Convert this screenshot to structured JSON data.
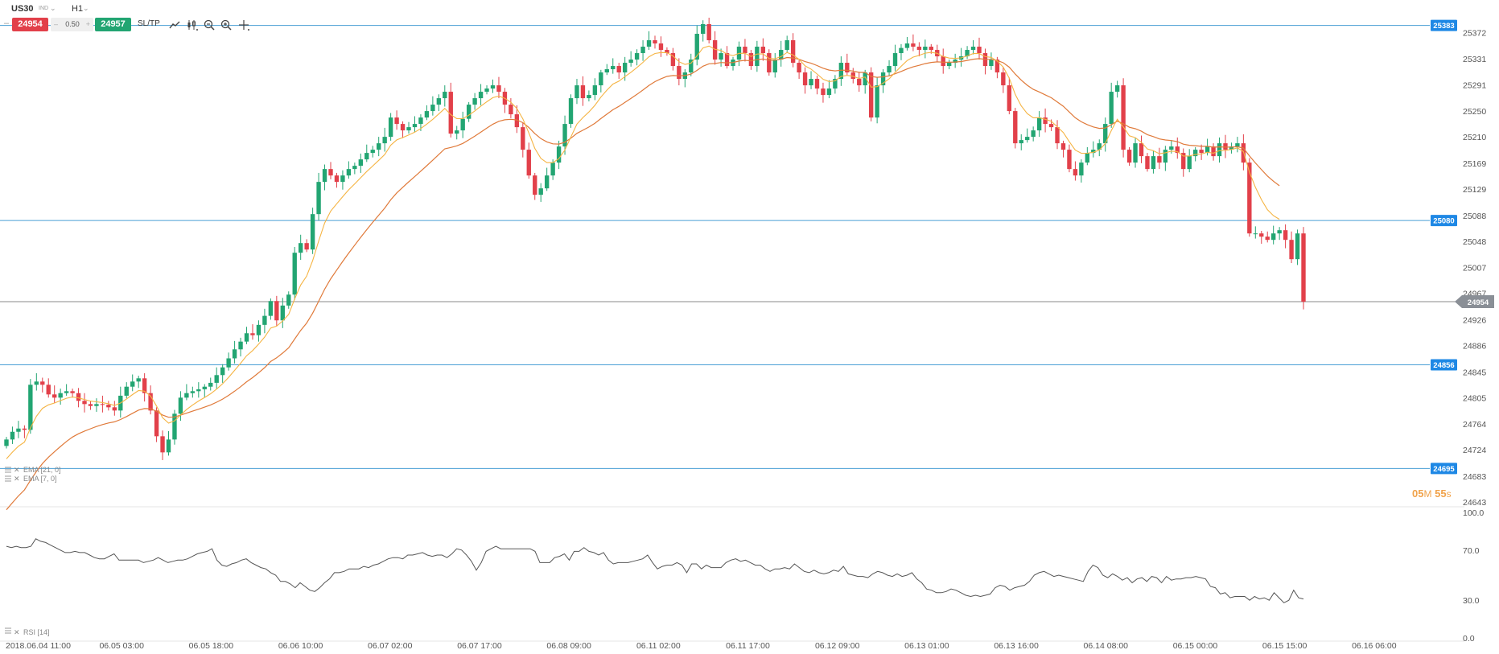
{
  "toolbar": {
    "symbol": "US30",
    "symbol_type": "IND",
    "timeframe": "H1",
    "sell_price": "24954",
    "spread": "0.50",
    "buy_price": "24957",
    "sltp_label": "SL/TP",
    "tool_icons": [
      "line-chart-icon",
      "candles-icon",
      "zoom-out-icon",
      "zoom-in-icon",
      "crosshair-icon"
    ]
  },
  "timer": {
    "minutes": "05",
    "minutes_unit": "M",
    "seconds": "55",
    "seconds_unit": "s"
  },
  "colors": {
    "bull": "#22a572",
    "bear": "#e2404a",
    "ema7": "#f5b443",
    "ema21": "#e07a3a",
    "hline": "#4a9fd5",
    "badge": "#1e88e5",
    "current": "#888888",
    "rsi": "#555555"
  },
  "chart_data": [
    {
      "type": "candlestick",
      "symbol": "US30",
      "timeframe": "H1",
      "ylim": [
        24643,
        25395
      ],
      "yticks": [
        "25372",
        "25331",
        "25291",
        "25250",
        "25210",
        "25169",
        "25129",
        "25088",
        "25048",
        "25007",
        "24967",
        "24926",
        "24886",
        "24845",
        "24805",
        "24764",
        "24724",
        "24683",
        "24643"
      ],
      "xticks": [
        "2018.06.04 11:00",
        "06.05 03:00",
        "06.05 18:00",
        "06.06 10:00",
        "06.07 02:00",
        "06.07 17:00",
        "06.08 09:00",
        "06.11 02:00",
        "06.11 17:00",
        "06.12 09:00",
        "06.13 01:00",
        "06.13 16:00",
        "06.14 08:00",
        "06.15 00:00",
        "06.15 15:00",
        "06.16 06:00"
      ],
      "hlines": [
        25383,
        25080,
        24856,
        24695
      ],
      "hline_labels": [
        "25383",
        "25080",
        "24856",
        "24695"
      ],
      "current_price": 24954,
      "current_label": "24954",
      "legend": [
        "EMA [21, 0]",
        "EMA [7, 0]"
      ],
      "close": [
        24740,
        24752,
        24757,
        24755,
        24825,
        24830,
        24825,
        24810,
        24805,
        24812,
        24815,
        24812,
        24800,
        24795,
        24792,
        24795,
        24794,
        24790,
        24785,
        24808,
        24822,
        24830,
        24835,
        24812,
        24785,
        24745,
        24720,
        24740,
        24780,
        24805,
        24812,
        24815,
        24818,
        24822,
        24828,
        24840,
        24852,
        24866,
        24880,
        24892,
        24905,
        24902,
        24918,
        24932,
        24955,
        24925,
        24948,
        24965,
        25030,
        25045,
        25035,
        25090,
        25140,
        25160,
        25150,
        25140,
        25150,
        25160,
        25165,
        25175,
        25185,
        25190,
        25200,
        25210,
        25240,
        25230,
        25220,
        25225,
        25230,
        25240,
        25250,
        25260,
        25270,
        25280,
        25215,
        25220,
        25238,
        25260,
        25270,
        25280,
        25285,
        25290,
        25280,
        25260,
        25245,
        25225,
        25190,
        25150,
        25120,
        25130,
        25150,
        25170,
        25195,
        25230,
        25270,
        25290,
        25270,
        25275,
        25290,
        25310,
        25315,
        25320,
        25310,
        25325,
        25330,
        25340,
        25350,
        25360,
        25355,
        25345,
        25340,
        25320,
        25300,
        25310,
        25330,
        25370,
        25385,
        25360,
        25330,
        25340,
        25320,
        25330,
        25350,
        25340,
        25320,
        25350,
        25340,
        25310,
        25330,
        25345,
        25360,
        25325,
        25310,
        25290,
        25300,
        25285,
        25275,
        25285,
        25300,
        25325,
        25310,
        25300,
        25290,
        25310,
        25240,
        25290,
        25310,
        25320,
        25340,
        25348,
        25355,
        25350,
        25345,
        25350,
        25345,
        25335,
        25320,
        25325,
        25330,
        25335,
        25345,
        25350,
        25340,
        25320,
        25330,
        25310,
        25290,
        25250,
        25200,
        25205,
        25210,
        25220,
        25240,
        25230,
        25225,
        25200,
        25190,
        25160,
        25150,
        25170,
        25185,
        25190,
        25200,
        25230,
        25280,
        25290,
        25190,
        25170,
        25200,
        25180,
        25160,
        25180,
        25170,
        25190,
        25195,
        25185,
        25160,
        25180,
        25190,
        25185,
        25195,
        25180,
        25200,
        25190,
        25195,
        25200,
        25170,
        25060,
        25060,
        25055,
        25050,
        25060,
        25065,
        25050,
        25020,
        25060,
        24954
      ]
    },
    {
      "type": "line",
      "name": "RSI [14]",
      "legend": "RSI [14]",
      "ylim": [
        0,
        100
      ],
      "yticks": [
        "100.0",
        "70.0",
        "30.0",
        "0.0"
      ],
      "values": [
        73,
        72,
        73,
        72,
        72,
        73,
        79,
        77,
        76,
        74,
        72,
        70,
        68,
        68,
        69,
        68,
        68,
        66,
        64,
        63,
        63,
        65,
        67,
        62,
        62,
        62,
        62,
        62,
        60,
        61,
        62,
        64,
        62,
        60,
        61,
        62,
        62,
        63,
        65,
        67,
        68,
        69,
        71,
        62,
        58,
        57,
        59,
        60,
        62,
        63,
        60,
        58,
        56,
        55,
        52,
        50,
        45,
        45,
        43,
        40,
        44,
        41,
        38,
        37,
        40,
        44,
        47,
        52,
        52,
        53,
        55,
        55,
        55,
        57,
        56,
        58,
        59,
        61,
        63,
        64,
        64,
        63,
        66,
        66,
        67,
        68,
        66,
        65,
        66,
        66,
        64,
        67,
        71,
        70,
        66,
        61,
        54,
        60,
        69,
        71,
        73,
        71,
        71,
        71,
        71,
        71,
        71,
        71,
        69,
        60,
        60,
        60,
        64,
        65,
        67,
        62,
        69,
        69,
        72,
        69,
        68,
        66,
        68,
        62,
        59,
        60,
        60,
        60,
        61,
        62,
        63,
        66,
        60,
        55,
        57,
        58,
        58,
        60,
        58,
        52,
        59,
        59,
        55,
        58,
        56,
        56,
        56,
        60,
        62,
        63,
        61,
        62,
        60,
        58,
        58,
        55,
        53,
        55,
        55,
        56,
        55,
        59,
        56,
        53,
        52,
        54,
        52,
        51,
        52,
        54,
        53,
        57,
        51,
        50,
        49,
        49,
        48,
        51,
        53,
        52,
        50,
        49,
        51,
        49,
        50,
        52,
        47,
        44,
        39,
        38,
        36,
        36,
        37,
        39,
        38,
        36,
        34,
        33,
        34,
        33,
        34,
        35,
        40,
        42,
        41,
        38,
        40,
        41,
        42,
        45,
        50,
        52,
        53,
        51,
        49,
        50,
        49,
        48,
        47,
        46,
        45,
        53,
        58,
        56,
        50,
        48,
        51,
        49,
        46,
        48,
        44,
        47,
        48,
        45,
        49,
        48,
        44,
        49,
        46,
        47,
        47,
        48,
        48,
        49,
        48,
        47,
        41,
        40,
        35,
        36,
        32,
        33,
        33,
        33,
        30,
        33,
        31,
        32,
        30,
        36,
        32,
        28,
        30,
        38,
        32,
        31
      ]
    }
  ]
}
